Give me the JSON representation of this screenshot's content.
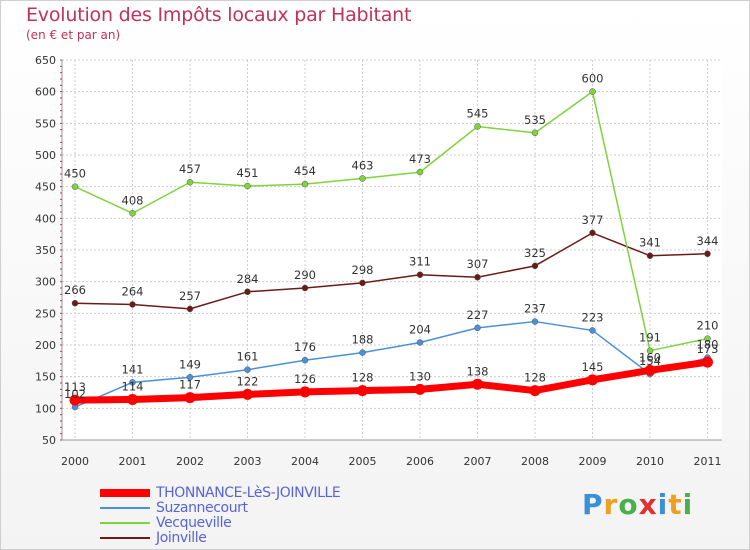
{
  "title": "Evolution des Impôts locaux par Habitant",
  "subtitle": "(en € et par an)",
  "logo_text": "Proxiti",
  "chart_data": {
    "type": "line",
    "x": [
      "2000",
      "2001",
      "2002",
      "2003",
      "2004",
      "2005",
      "2006",
      "2007",
      "2008",
      "2009",
      "2010",
      "2011"
    ],
    "ylim": [
      50,
      650
    ],
    "yticks": [
      50,
      100,
      150,
      200,
      250,
      300,
      350,
      400,
      450,
      500,
      550,
      600,
      650
    ],
    "grid": true,
    "legend_position": "bottom-left",
    "series": [
      {
        "name": "THONNANCE-LèS-JOINVILLE",
        "color": "#ff0000",
        "values": [
          113,
          114,
          117,
          122,
          126,
          128,
          130,
          138,
          128,
          145,
          160,
          173
        ],
        "labels": [
          "113",
          "114",
          "117",
          "122",
          "126",
          "128",
          "130",
          "138",
          "128",
          "145",
          "160",
          "173"
        ]
      },
      {
        "name": "Suzannecourt",
        "color": "#4a90d9",
        "values": [
          102,
          141,
          149,
          161,
          176,
          188,
          204,
          227,
          237,
          223,
          154,
          180
        ],
        "labels": [
          "102",
          "141",
          "149",
          "161",
          "176",
          "188",
          "204",
          "227",
          "237",
          "223",
          "154",
          "180"
        ]
      },
      {
        "name": "Vecqueville",
        "color": "#7fd33b",
        "values": [
          450,
          408,
          457,
          451,
          454,
          463,
          473,
          545,
          535,
          600,
          191,
          210
        ],
        "labels": [
          "450",
          "408",
          "457",
          "451",
          "454",
          "463",
          "473",
          "545",
          "535",
          "600",
          "191",
          "210"
        ]
      },
      {
        "name": "Joinville",
        "color": "#6b1a1a",
        "values": [
          266,
          264,
          257,
          284,
          290,
          298,
          311,
          307,
          325,
          377,
          341,
          344
        ],
        "labels": [
          "266",
          "264",
          "257",
          "284",
          "290",
          "298",
          "311",
          "307",
          "325",
          "377",
          "341",
          "344"
        ]
      }
    ]
  }
}
